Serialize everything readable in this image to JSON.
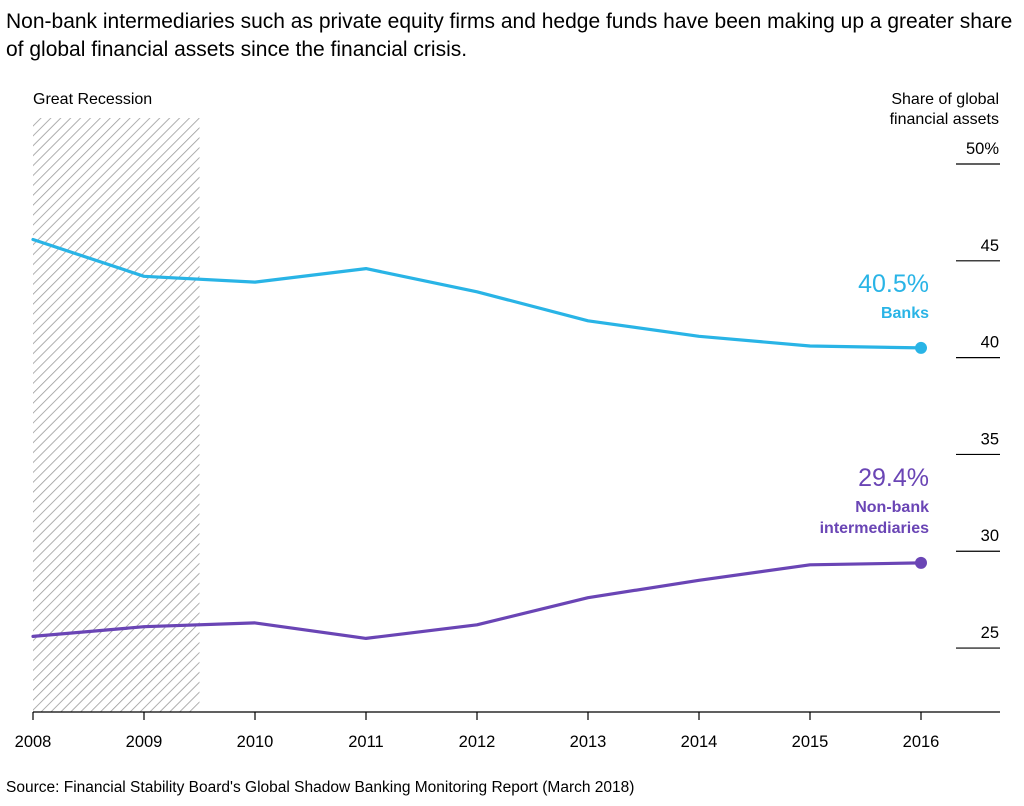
{
  "headline": "Non-bank intermediaries such as private equity firms and hedge funds have been making up a greater share of global financial assets since the financial crisis.",
  "source": "Source: Financial Stability Board's Global Shadow Banking Monitoring Report (March 2018)",
  "colors": {
    "banks": "#29b4e6",
    "nonbank": "#6a45b5",
    "axis": "#000000",
    "shade_hatch": "#9a9a9a"
  },
  "chart_data": {
    "type": "line",
    "title": "",
    "xlabel": "",
    "ylabel": "Share of global financial assets",
    "x": [
      2008,
      2009,
      2010,
      2011,
      2012,
      2013,
      2014,
      2015,
      2016
    ],
    "ylim": [
      21.8,
      50
    ],
    "yticks": [
      25,
      30,
      35,
      40,
      45,
      50
    ],
    "ytick_labels": [
      "25",
      "30",
      "35",
      "40",
      "45",
      "50%"
    ],
    "xtick_labels": [
      "2008",
      "2009",
      "2010",
      "2011",
      "2012",
      "2013",
      "2014",
      "2015",
      "2016"
    ],
    "grid": false,
    "shaded_region": {
      "label": "Great Recession",
      "x_start": 2008,
      "x_end": 2009.5
    },
    "series": [
      {
        "key": "banks",
        "name": "Banks",
        "value_label": "40.5%",
        "values": [
          46.1,
          44.2,
          43.9,
          44.6,
          43.4,
          41.9,
          41.1,
          40.6,
          40.5
        ]
      },
      {
        "key": "nonbank",
        "name": "Non-bank intermediaries",
        "name_lines": [
          "Non-bank",
          "intermediaries"
        ],
        "value_label": "29.4%",
        "values": [
          25.6,
          26.1,
          26.3,
          25.5,
          26.2,
          27.6,
          28.5,
          29.3,
          29.4
        ]
      }
    ]
  }
}
